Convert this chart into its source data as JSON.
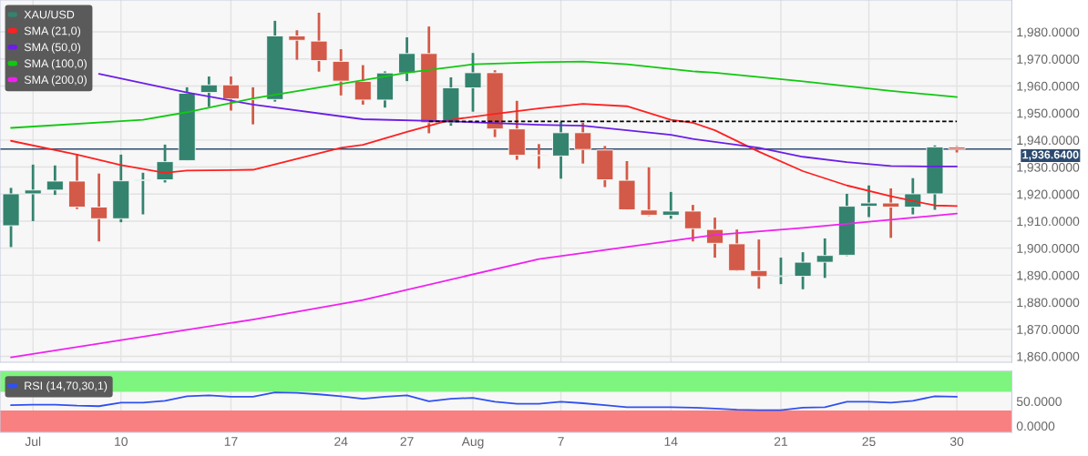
{
  "chart_data": [
    {
      "type": "candlestick",
      "series": [
        {
          "name": "XAU/USD",
          "type": "candlestick",
          "color": "#34836f",
          "ohlc": [
            [
              1908.3,
              1922.3,
              1900.4,
              1920.1
            ],
            [
              1920.1,
              1930.9,
              1910.0,
              1921.5
            ],
            [
              1921.5,
              1930.6,
              1919.7,
              1924.8
            ],
            [
              1924.8,
              1934.8,
              1914.5,
              1915.2
            ],
            [
              1915.2,
              1927.6,
              1902.5,
              1910.9
            ],
            [
              1910.9,
              1934.6,
              1909.6,
              1924.9
            ],
            [
              1925.0,
              1927.9,
              1912.5,
              1925.2
            ],
            [
              1925.3,
              1938.3,
              1924.3,
              1932.0
            ],
            [
              1932.4,
              1959.5,
              1932.4,
              1957.3
            ],
            [
              1957.6,
              1963.5,
              1952.3,
              1960.4
            ],
            [
              1960.4,
              1963.5,
              1950.9,
              1955.2
            ],
            [
              1955.2,
              1959.5,
              1945.8,
              1955.0
            ],
            [
              1955.0,
              1984.1,
              1954.2,
              1978.5
            ],
            [
              1978.5,
              1980.6,
              1969.7,
              1976.9
            ],
            [
              1976.6,
              1987.1,
              1965.3,
              1969.4
            ],
            [
              1969.1,
              1973.6,
              1956.5,
              1961.8
            ],
            [
              1961.7,
              1967.7,
              1953.1,
              1954.8
            ],
            [
              1954.8,
              1965.4,
              1952.0,
              1964.8
            ],
            [
              1964.8,
              1978.0,
              1961.8,
              1972.0
            ],
            [
              1972.0,
              1982.0,
              1942.5,
              1946.4
            ],
            [
              1946.4,
              1963.2,
              1945.3,
              1959.3
            ],
            [
              1959.3,
              1972.2,
              1950.5,
              1964.9
            ],
            [
              1964.9,
              1965.8,
              1941.1,
              1944.1
            ],
            [
              1944.1,
              1954.5,
              1932.7,
              1934.4
            ],
            [
              1934.4,
              1938.5,
              1929.4,
              1934.2
            ],
            [
              1934.1,
              1946.7,
              1925.7,
              1942.7
            ],
            [
              1942.7,
              1946.4,
              1931.3,
              1936.5
            ],
            [
              1936.3,
              1937.8,
              1922.6,
              1925.3
            ],
            [
              1925.1,
              1932.2,
              1914.1,
              1914.2
            ],
            [
              1914.1,
              1929.9,
              1911.9,
              1912.2
            ],
            [
              1912.2,
              1920.8,
              1910.9,
              1913.7
            ],
            [
              1913.7,
              1916.0,
              1902.5,
              1907.2
            ],
            [
              1906.9,
              1911.3,
              1896.5,
              1901.8
            ],
            [
              1901.6,
              1906.9,
              1891.5,
              1891.7
            ],
            [
              1891.7,
              1903.2,
              1885.0,
              1889.5
            ],
            [
              1889.5,
              1896.5,
              1886.7,
              1889.6
            ],
            [
              1889.6,
              1898.5,
              1884.8,
              1894.8
            ],
            [
              1894.8,
              1903.6,
              1889.0,
              1897.3
            ],
            [
              1897.4,
              1920.1,
              1897.1,
              1915.5
            ],
            [
              1915.5,
              1923.2,
              1911.5,
              1916.7
            ],
            [
              1916.7,
              1922.1,
              1903.8,
              1915.2
            ],
            [
              1915.2,
              1925.9,
              1912.5,
              1920.1
            ],
            [
              1920.1,
              1938.0,
              1914.2,
              1937.4
            ],
            [
              1937.4,
              1937.8,
              1935.4,
              1936.64
            ]
          ],
          "colors": [
            "#34836f",
            "#34836f",
            "#34836f",
            "#d35a48",
            "#d35a48",
            "#34836f",
            "#34836f",
            "#34836f",
            "#34836f",
            "#34836f",
            "#d35a48",
            "#d35a48",
            "#34836f",
            "#d35a48",
            "#d35a48",
            "#d35a48",
            "#d35a48",
            "#34836f",
            "#34836f",
            "#d35a48",
            "#34836f",
            "#34836f",
            "#d35a48",
            "#d35a48",
            "#d35a48",
            "#34836f",
            "#d35a48",
            "#d35a48",
            "#d35a48",
            "#d35a48",
            "#34836f",
            "#d35a48",
            "#d35a48",
            "#d35a48",
            "#d35a48",
            "#34836f",
            "#34836f",
            "#34836f",
            "#34836f",
            "#34836f",
            "#d35a48",
            "#34836f",
            "#34836f",
            "#d35a48"
          ]
        },
        {
          "name": "SMA (21,0)",
          "type": "line",
          "color": "#ff2020",
          "values": [
            1939.7,
            null,
            null,
            1934.6,
            null,
            1930.7,
            null,
            1927.9,
            1928.7,
            null,
            null,
            1929.0,
            null,
            null,
            null,
            1937.1,
            1938.2,
            null,
            1943.0,
            null,
            1947.5,
            null,
            1949.7,
            null,
            1951.7,
            null,
            1953.4,
            null,
            1952.5,
            null,
            1947.5,
            1946.4,
            1943.6,
            null,
            1935.7,
            null,
            1928.5,
            null,
            1923.2,
            null,
            1919.2,
            null,
            1915.8,
            1915.6
          ]
        },
        {
          "name": "SMA (50,0)",
          "type": "line",
          "color": "#6a1ee8",
          "values": [
            null,
            null,
            null,
            null,
            1964.5,
            null,
            null,
            null,
            1957.6,
            null,
            null,
            1953.1,
            null,
            null,
            null,
            null,
            1947.7,
            null,
            null,
            null,
            1946.9,
            null,
            null,
            null,
            1945.6,
            null,
            1945.3,
            null,
            1943.6,
            null,
            1941.9,
            1940.4,
            null,
            null,
            1937.1,
            null,
            1933.8,
            null,
            1931.8,
            null,
            1930.4,
            null,
            1930.2,
            1930.2
          ]
        },
        {
          "name": "SMA (100,0)",
          "type": "line",
          "color": "#10c810",
          "values": [
            1944.5,
            null,
            null,
            null,
            null,
            null,
            1947.5,
            null,
            1950.3,
            null,
            null,
            1955.4,
            null,
            null,
            null,
            null,
            1962.1,
            null,
            1964.9,
            null,
            null,
            1968.0,
            null,
            null,
            1968.8,
            null,
            1969.0,
            null,
            1968.0,
            null,
            null,
            1965.4,
            1964.9,
            null,
            null,
            null,
            1961.7,
            null,
            null,
            null,
            1958.2,
            null,
            null,
            1955.9
          ]
        },
        {
          "name": "SMA (200,0)",
          "type": "line",
          "color": "#f020f0",
          "values": [
            1859.6,
            null,
            null,
            null,
            null,
            null,
            null,
            null,
            null,
            null,
            null,
            1873.6,
            null,
            null,
            null,
            null,
            1880.8,
            null,
            null,
            null,
            null,
            null,
            null,
            null,
            1896.0,
            null,
            null,
            null,
            null,
            null,
            null,
            1903.8,
            1904.9,
            null,
            null,
            null,
            1907.5,
            null,
            null,
            null,
            1910.5,
            null,
            null,
            1912.8
          ]
        },
        {
          "type": "line",
          "color": "#000000",
          "line_style": "dashed",
          "values": [
            null,
            null,
            null,
            null,
            null,
            null,
            null,
            null,
            null,
            null,
            null,
            null,
            null,
            null,
            null,
            null,
            null,
            null,
            null,
            1946.9,
            null,
            null,
            null,
            null,
            null,
            null,
            null,
            null,
            null,
            null,
            null,
            null,
            null,
            null,
            null,
            null,
            null,
            null,
            null,
            null,
            null,
            null,
            null,
            1946.9
          ]
        }
      ],
      "ref_lines": [
        {
          "axis": "y",
          "value": 1936.64,
          "label": "1,936.6400",
          "color": "#2c4a6e"
        }
      ],
      "ylim": [
        1857.8,
        1991.8
      ],
      "yticks": [
        {
          "value": 1860,
          "label": "1,860.0000"
        },
        {
          "value": 1870,
          "label": "1,870.0000"
        },
        {
          "value": 1880,
          "label": "1,880.0000"
        },
        {
          "value": 1890,
          "label": "1,890.0000"
        },
        {
          "value": 1900,
          "label": "1,900.0000"
        },
        {
          "value": 1910,
          "label": "1,910.0000"
        },
        {
          "value": 1920,
          "label": "1,920.0000"
        },
        {
          "value": 1930,
          "label": "1,930.0000"
        },
        {
          "value": 1940,
          "label": "1,940.0000"
        },
        {
          "value": 1950,
          "label": "1,950.0000"
        },
        {
          "value": 1960,
          "label": "1,960.0000"
        },
        {
          "value": 1970,
          "label": "1,970.0000"
        },
        {
          "value": 1980,
          "label": "1,980.0000"
        }
      ],
      "tick_labels": "y",
      "grid": true,
      "legend": "top left"
    },
    {
      "type": "line",
      "categories": [
        null,
        "Jul",
        null,
        null,
        null,
        "10",
        null,
        null,
        null,
        null,
        "17",
        null,
        null,
        null,
        null,
        "24",
        null,
        null,
        "27",
        null,
        null,
        "Aug",
        null,
        null,
        null,
        "7",
        null,
        null,
        null,
        null,
        "14",
        null,
        null,
        null,
        null,
        "21",
        null,
        null,
        null,
        "25",
        null,
        null,
        null,
        "30"
      ],
      "series": [
        {
          "name": "RSI (14,70,30,1)",
          "color": "#3050f0",
          "values": [
            42,
            43,
            43,
            41,
            40,
            47,
            47,
            51,
            60,
            62,
            59,
            59,
            68,
            67,
            64,
            60,
            55,
            59,
            62,
            50,
            55,
            57,
            49,
            45,
            45,
            49,
            46,
            42,
            38,
            38,
            38,
            37,
            35,
            33,
            32,
            32,
            37,
            38,
            49,
            49,
            47,
            51,
            60,
            59
          ]
        }
      ],
      "bands": [
        {
          "axis": "y",
          "from": 70,
          "to": 111,
          "color": "#7ef57e"
        },
        {
          "axis": "y",
          "from": -13,
          "to": 30,
          "color": "#f88080"
        }
      ],
      "ylim": [
        -13,
        111
      ],
      "yticks": [
        {
          "value": 0,
          "label": "0.0000"
        },
        {
          "value": 50,
          "label": "50.0000"
        }
      ],
      "grid": "x",
      "legend": "top left"
    }
  ]
}
